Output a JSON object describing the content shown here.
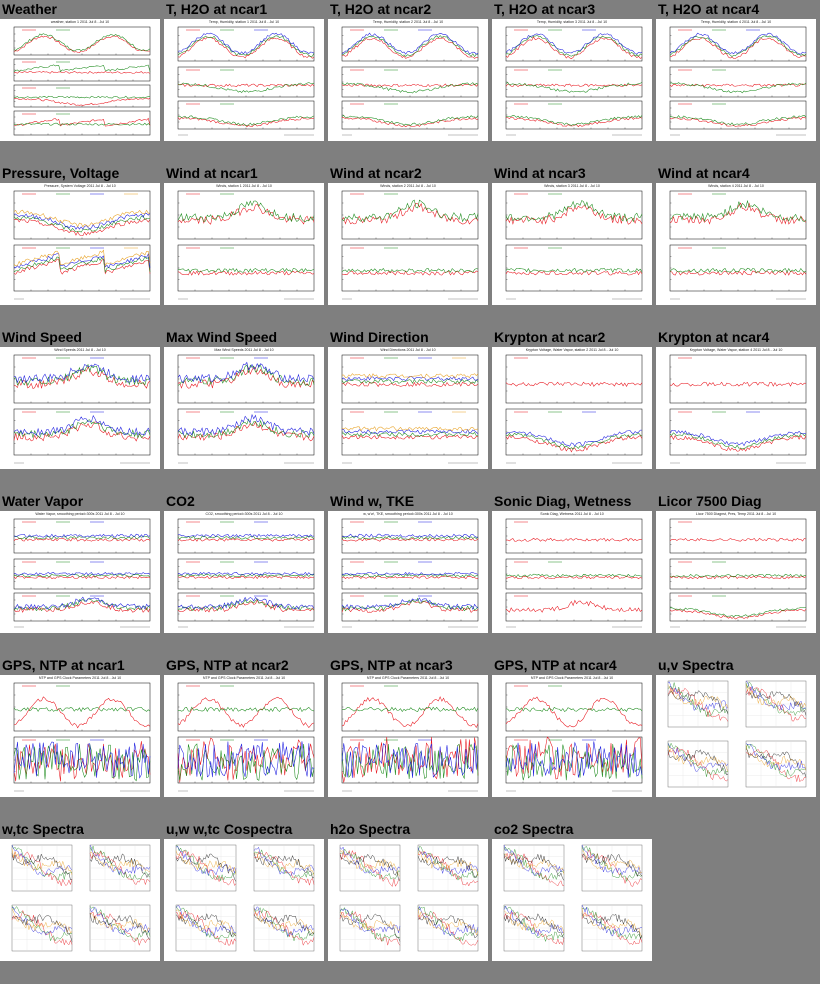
{
  "plots": [
    {
      "title": "Weather",
      "layout": "weather",
      "caption": "weather, station 1 2011 Jul 8 - Jul 10"
    },
    {
      "title": "T, H2O at ncar1",
      "layout": "th",
      "caption": "Temp, Humidity, station 1 2011 Jul 8 - Jul 10"
    },
    {
      "title": "T, H2O at ncar2",
      "layout": "th",
      "caption": "Temp, Humidity, station 2 2011 Jul 8 - Jul 10"
    },
    {
      "title": "T, H2O at ncar3",
      "layout": "th",
      "caption": "Temp, Humidity, station 3 2011 Jul 8 - Jul 10"
    },
    {
      "title": "T, H2O at ncar4",
      "layout": "th",
      "caption": "Temp, Humidity, station 4 2011 Jul 8 - Jul 10"
    },
    {
      "title": "Pressure, Voltage",
      "layout": "press",
      "caption": "Pressure, System Voltage 2011 Jul 8 - Jul 10"
    },
    {
      "title": "Wind at ncar1",
      "layout": "wind",
      "caption": "Winds, station 1 2011 Jul 8 - Jul 10"
    },
    {
      "title": "Wind at ncar2",
      "layout": "wind",
      "caption": "Winds, station 2 2011 Jul 8 - Jul 10"
    },
    {
      "title": "Wind at ncar3",
      "layout": "wind",
      "caption": "Winds, station 3 2011 Jul 8 - Jul 10"
    },
    {
      "title": "Wind at ncar4",
      "layout": "wind",
      "caption": "Winds, station 4 2011 Jul 8 - Jul 10"
    },
    {
      "title": "Wind Speed",
      "layout": "speed",
      "caption": "Wind Speeds 2011 Jul 8 - Jul 10"
    },
    {
      "title": "Max Wind Speed",
      "layout": "speed",
      "caption": "Max Wind Speeds 2011 Jul 8 - Jul 10"
    },
    {
      "title": "Wind Direction",
      "layout": "dir",
      "caption": "Wind Directions 2011 Jul 8 - Jul 10"
    },
    {
      "title": "Krypton at ncar2",
      "layout": "kh",
      "caption": "Krypton Voltage, Water Vapor, station 2 2011 Jul 8 - Jul 10"
    },
    {
      "title": "Krypton at ncar4",
      "layout": "kh",
      "caption": "Krypton Voltage, Water Vapor, station 4 2011 Jul 8 - Jul 10"
    },
    {
      "title": "Water Vapor",
      "layout": "three",
      "caption": "Water Vapor, smoothing period=300s 2011 Jul 8 - Jul 10"
    },
    {
      "title": "CO2",
      "layout": "three",
      "caption": "CO2, smoothing period=300s 2011 Jul 8 - Jul 10"
    },
    {
      "title": "Wind w, TKE",
      "layout": "three",
      "caption": "w, w'w', TKE, smoothing period=300s 2011 Jul 8 - Jul 10"
    },
    {
      "title": "Sonic Diag, Wetness",
      "layout": "sonic",
      "caption": "Sonic Diag, Wetness 2011 Jul 8 - Jul 10"
    },
    {
      "title": "Licor 7500 Diag",
      "layout": "licor",
      "caption": "Licor 7500 Diagnst, Pres, Temp 2011 Jul 8 - Jul 10"
    },
    {
      "title": "GPS, NTP at ncar1",
      "layout": "gps",
      "caption": "NTP and GPS Clock Parameters 2011 Jul 8 - Jul 10"
    },
    {
      "title": "GPS, NTP at ncar2",
      "layout": "gps",
      "caption": "NTP and GPS Clock Parameters 2011 Jul 8 - Jul 10"
    },
    {
      "title": "GPS, NTP at ncar3",
      "layout": "gps",
      "caption": "NTP and GPS Clock Parameters 2011 Jul 8 - Jul 10"
    },
    {
      "title": "GPS, NTP at ncar4",
      "layout": "gps",
      "caption": "NTP and GPS Clock Parameters 2011 Jul 8 - Jul 10"
    },
    {
      "title": "u,v Spectra",
      "layout": "spectra",
      "caption": ""
    },
    {
      "title": "w,tc Spectra",
      "layout": "spectra",
      "caption": ""
    },
    {
      "title": "u,w w,tc Cospectra",
      "layout": "spectra",
      "caption": ""
    },
    {
      "title": "h2o Spectra",
      "layout": "spectra",
      "caption": ""
    },
    {
      "title": "co2 Spectra",
      "layout": "spectra",
      "caption": ""
    }
  ],
  "colors": {
    "page_background": "#7f7f7f",
    "red": "#e8141c",
    "green": "#1a8a1a",
    "blue": "#1c1ce0",
    "orange": "#e8a020",
    "black": "#111111"
  }
}
